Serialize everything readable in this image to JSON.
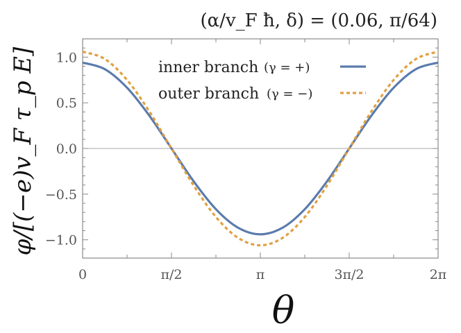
{
  "chart_data": {
    "type": "line",
    "title": "(α/v_F ħ, δ) = (0.06, π/64)",
    "xlabel": "θ",
    "ylabel": "φ/[(−e)v_F τ_p E]",
    "xlim": [
      0,
      6.283185307
    ],
    "ylim": [
      -1.2,
      1.2
    ],
    "grid": false,
    "legend_placement": "top-center",
    "x_ticks": [
      {
        "value": 0,
        "label": "0"
      },
      {
        "value": 1.5707963,
        "label": "π/2"
      },
      {
        "value": 3.1415927,
        "label": "π"
      },
      {
        "value": 4.712389,
        "label": "3π/2"
      },
      {
        "value": 6.2831853,
        "label": "2π"
      }
    ],
    "y_ticks": [
      {
        "value": 1.0,
        "label": "1.0"
      },
      {
        "value": 0.5,
        "label": "0.5"
      },
      {
        "value": 0.0,
        "label": "0.0"
      },
      {
        "value": -0.5,
        "label": "−0.5"
      },
      {
        "value": -1.0,
        "label": "−1.0"
      }
    ],
    "series": [
      {
        "name": "inner branch (γ = +)",
        "label_text": "inner branch",
        "label_math": "(γ = +)",
        "color": "#5b7bad",
        "style": "solid",
        "x": [
          0,
          0.3927,
          0.7854,
          1.1781,
          1.5708,
          1.9635,
          2.3562,
          2.7489,
          3.1416,
          3.5343,
          3.927,
          4.3197,
          4.7124,
          5.1051,
          5.4978,
          5.8905,
          6.2832
        ],
        "values": [
          0.94,
          0.868,
          0.665,
          0.36,
          0.0,
          -0.36,
          -0.665,
          -0.868,
          -0.94,
          -0.868,
          -0.665,
          -0.36,
          0.0,
          0.36,
          0.665,
          0.868,
          0.94
        ]
      },
      {
        "name": "outer branch (γ = −)",
        "label_text": "outer branch",
        "label_math": "(γ = −)",
        "color": "#e0a040",
        "style": "dashed",
        "x": [
          0,
          0.3927,
          0.7854,
          1.1781,
          1.5708,
          1.9635,
          2.3562,
          2.7489,
          3.1416,
          3.5343,
          3.927,
          4.3197,
          4.7124,
          5.1051,
          5.4978,
          5.8905,
          6.2832
        ],
        "values": [
          1.06,
          0.979,
          0.75,
          0.406,
          0.0,
          -0.406,
          -0.75,
          -0.979,
          -1.06,
          -0.979,
          -0.75,
          -0.406,
          0.0,
          0.406,
          0.75,
          0.979,
          1.06
        ]
      }
    ]
  }
}
